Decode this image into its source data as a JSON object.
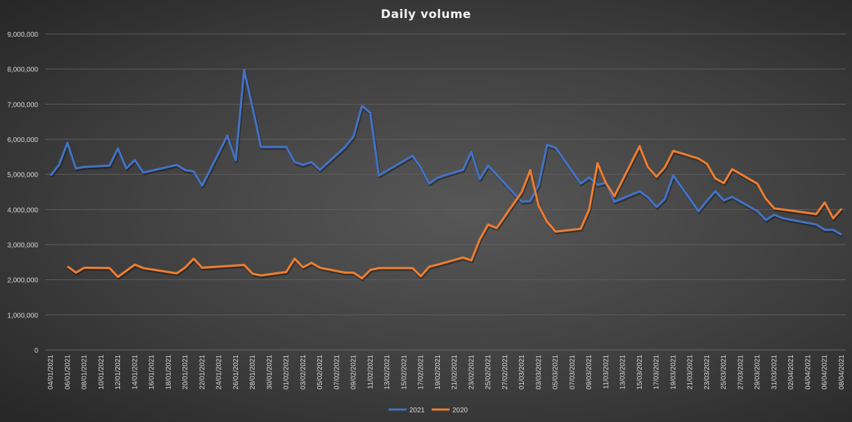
{
  "chart_data": {
    "type": "line",
    "title": "Daily volume",
    "xlabel": "",
    "ylabel": "",
    "ylim": [
      0,
      9000000
    ],
    "yticks": [
      "0",
      "1,000,000",
      "2,000,000",
      "3,000,000",
      "4,000,000",
      "5,000,000",
      "6,000,000",
      "7,000,000",
      "8,000,000",
      "9,000,000"
    ],
    "xticks": [
      "04/01/2021",
      "06/01/2021",
      "08/01/2021",
      "10/01/2021",
      "12/01/2021",
      "14/01/2021",
      "16/01/2021",
      "18/01/2021",
      "20/01/2021",
      "22/01/2021",
      "24/01/2021",
      "26/01/2021",
      "28/01/2021",
      "30/01/2021",
      "01/02/2021",
      "03/02/2021",
      "05/02/2021",
      "07/02/2021",
      "09/02/2021",
      "11/02/2021",
      "13/02/2021",
      "15/02/2021",
      "17/02/2021",
      "19/02/2021",
      "21/02/2021",
      "23/02/2021",
      "25/02/2021",
      "27/02/2021",
      "01/03/2021",
      "03/03/2021",
      "05/03/2021",
      "07/03/2021",
      "09/03/2021",
      "11/03/2021",
      "13/03/2021",
      "15/03/2021",
      "17/03/2021",
      "19/03/2021",
      "21/03/2021",
      "23/03/2021",
      "25/03/2021",
      "27/03/2021",
      "29/03/2021",
      "31/03/2021",
      "02/04/2021",
      "04/04/2021",
      "06/04/2021",
      "08/04/2021"
    ],
    "xrange": [
      "04/01/2021",
      "08/04/2021"
    ],
    "grid": true,
    "legend_position": "bottom",
    "series": [
      {
        "name": "2021",
        "color": "#4472c4",
        "points": [
          [
            "04/01/2021",
            4970000
          ],
          [
            "05/01/2021",
            5270000
          ],
          [
            "06/01/2021",
            5900000
          ],
          [
            "07/01/2021",
            5170000
          ],
          [
            "08/01/2021",
            5210000
          ],
          [
            "11/01/2021",
            5250000
          ],
          [
            "12/01/2021",
            5740000
          ],
          [
            "13/01/2021",
            5170000
          ],
          [
            "14/01/2021",
            5410000
          ],
          [
            "15/01/2021",
            5050000
          ],
          [
            "19/01/2021",
            5270000
          ],
          [
            "20/01/2021",
            5120000
          ],
          [
            "21/01/2021",
            5080000
          ],
          [
            "22/01/2021",
            4680000
          ],
          [
            "25/01/2021",
            6100000
          ],
          [
            "26/01/2021",
            5400000
          ],
          [
            "27/01/2021",
            7970000
          ],
          [
            "28/01/2021",
            6900000
          ],
          [
            "29/01/2021",
            5780000
          ],
          [
            "01/02/2021",
            5780000
          ],
          [
            "02/02/2021",
            5350000
          ],
          [
            "03/02/2021",
            5270000
          ],
          [
            "04/02/2021",
            5350000
          ],
          [
            "05/02/2021",
            5130000
          ],
          [
            "08/02/2021",
            5780000
          ],
          [
            "09/02/2021",
            6080000
          ],
          [
            "10/02/2021",
            6950000
          ],
          [
            "11/02/2021",
            6750000
          ],
          [
            "12/02/2021",
            4970000
          ],
          [
            "16/02/2021",
            5530000
          ],
          [
            "17/02/2021",
            5190000
          ],
          [
            "18/02/2021",
            4740000
          ],
          [
            "19/02/2021",
            4910000
          ],
          [
            "22/02/2021",
            5130000
          ],
          [
            "23/02/2021",
            5640000
          ],
          [
            "24/02/2021",
            4870000
          ],
          [
            "25/02/2021",
            5250000
          ],
          [
            "26/02/2021",
            4990000
          ],
          [
            "01/03/2021",
            4220000
          ],
          [
            "02/03/2021",
            4240000
          ],
          [
            "03/03/2021",
            4700000
          ],
          [
            "04/03/2021",
            5840000
          ],
          [
            "05/03/2021",
            5760000
          ],
          [
            "08/03/2021",
            4740000
          ],
          [
            "09/03/2021",
            4910000
          ],
          [
            "10/03/2021",
            4700000
          ],
          [
            "11/03/2021",
            4760000
          ],
          [
            "12/03/2021",
            4220000
          ],
          [
            "15/03/2021",
            4520000
          ],
          [
            "16/03/2021",
            4340000
          ],
          [
            "17/03/2021",
            4070000
          ],
          [
            "18/03/2021",
            4300000
          ],
          [
            "19/03/2021",
            4970000
          ],
          [
            "22/03/2021",
            3950000
          ],
          [
            "23/03/2021",
            4250000
          ],
          [
            "24/03/2021",
            4520000
          ],
          [
            "25/03/2021",
            4260000
          ],
          [
            "26/03/2021",
            4360000
          ],
          [
            "29/03/2021",
            3950000
          ],
          [
            "30/03/2021",
            3700000
          ],
          [
            "31/03/2021",
            3850000
          ],
          [
            "01/04/2021",
            3750000
          ],
          [
            "05/04/2021",
            3570000
          ],
          [
            "06/04/2021",
            3420000
          ],
          [
            "07/04/2021",
            3420000
          ],
          [
            "08/04/2021",
            3280000
          ]
        ]
      },
      {
        "name": "2020",
        "color": "#ed7d31",
        "points": [
          [
            "06/01/2021",
            2380000
          ],
          [
            "07/01/2021",
            2200000
          ],
          [
            "08/01/2021",
            2340000
          ],
          [
            "11/01/2021",
            2330000
          ],
          [
            "12/01/2021",
            2080000
          ],
          [
            "14/01/2021",
            2430000
          ],
          [
            "15/01/2021",
            2330000
          ],
          [
            "19/01/2021",
            2180000
          ],
          [
            "20/01/2021",
            2350000
          ],
          [
            "21/01/2021",
            2600000
          ],
          [
            "22/01/2021",
            2340000
          ],
          [
            "27/01/2021",
            2420000
          ],
          [
            "28/01/2021",
            2170000
          ],
          [
            "29/01/2021",
            2120000
          ],
          [
            "01/02/2021",
            2220000
          ],
          [
            "02/02/2021",
            2600000
          ],
          [
            "03/02/2021",
            2350000
          ],
          [
            "04/02/2021",
            2480000
          ],
          [
            "05/02/2021",
            2340000
          ],
          [
            "08/02/2021",
            2200000
          ],
          [
            "09/02/2021",
            2200000
          ],
          [
            "10/02/2021",
            2040000
          ],
          [
            "11/02/2021",
            2280000
          ],
          [
            "12/02/2021",
            2330000
          ],
          [
            "16/02/2021",
            2330000
          ],
          [
            "17/02/2021",
            2100000
          ],
          [
            "18/02/2021",
            2370000
          ],
          [
            "19/02/2021",
            2430000
          ],
          [
            "22/02/2021",
            2630000
          ],
          [
            "23/02/2021",
            2550000
          ],
          [
            "24/02/2021",
            3150000
          ],
          [
            "25/02/2021",
            3570000
          ],
          [
            "26/02/2021",
            3470000
          ],
          [
            "01/03/2021",
            4500000
          ],
          [
            "02/03/2021",
            5120000
          ],
          [
            "03/03/2021",
            4100000
          ],
          [
            "04/03/2021",
            3650000
          ],
          [
            "05/03/2021",
            3370000
          ],
          [
            "08/03/2021",
            3450000
          ],
          [
            "09/03/2021",
            4000000
          ],
          [
            "10/03/2021",
            5320000
          ],
          [
            "11/03/2021",
            4750000
          ],
          [
            "12/03/2021",
            4380000
          ],
          [
            "15/03/2021",
            5800000
          ],
          [
            "16/03/2021",
            5200000
          ],
          [
            "17/03/2021",
            4930000
          ],
          [
            "18/03/2021",
            5200000
          ],
          [
            "19/03/2021",
            5670000
          ],
          [
            "22/03/2021",
            5450000
          ],
          [
            "23/03/2021",
            5300000
          ],
          [
            "24/03/2021",
            4880000
          ],
          [
            "25/03/2021",
            4750000
          ],
          [
            "26/03/2021",
            5150000
          ],
          [
            "29/03/2021",
            4730000
          ],
          [
            "30/03/2021",
            4300000
          ],
          [
            "31/03/2021",
            4030000
          ],
          [
            "01/04/2021",
            4000000
          ],
          [
            "05/04/2021",
            3870000
          ],
          [
            "06/04/2021",
            4200000
          ],
          [
            "07/04/2021",
            3750000
          ],
          [
            "08/04/2021",
            4020000
          ]
        ]
      }
    ]
  }
}
